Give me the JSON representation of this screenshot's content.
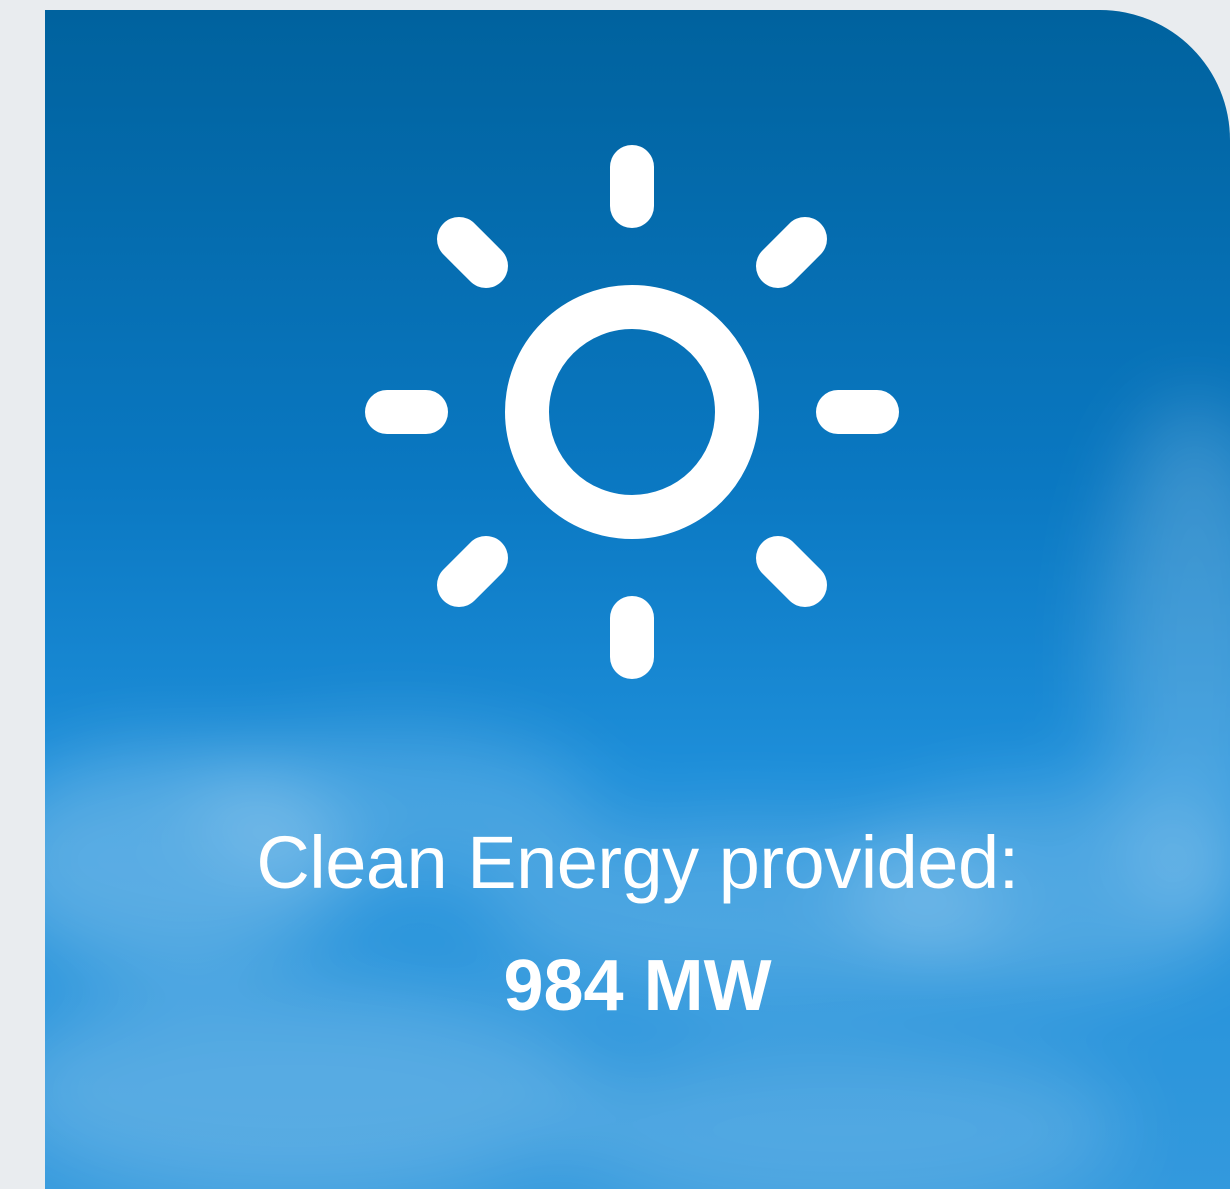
{
  "card": {
    "label": "Clean Energy provided:",
    "value": "984 MW"
  }
}
